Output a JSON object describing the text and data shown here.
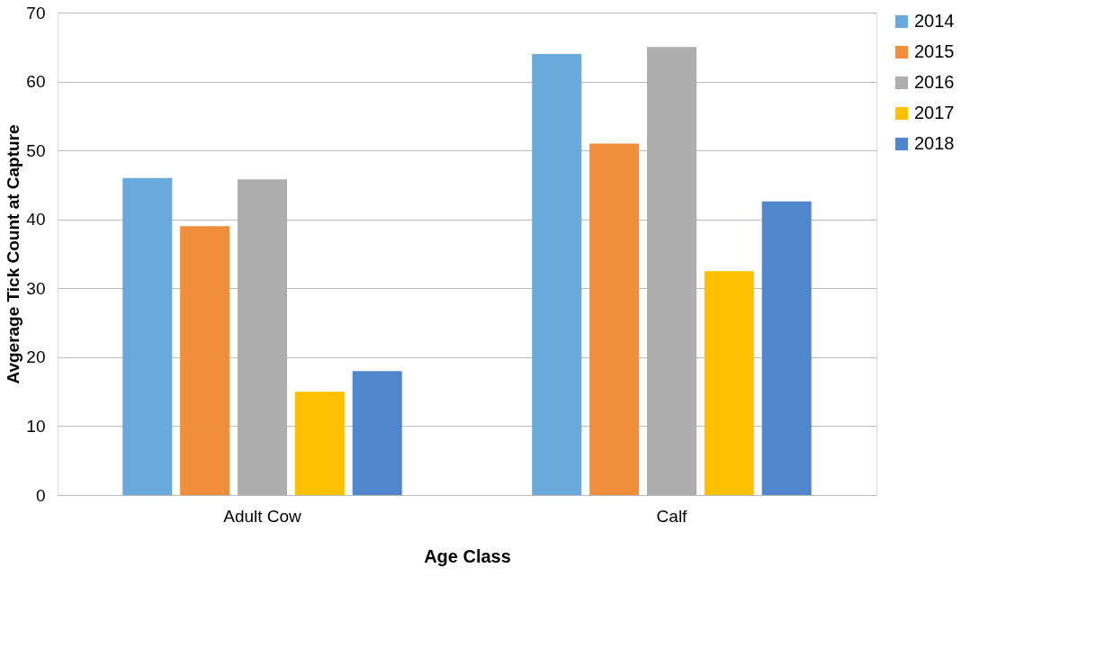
{
  "chart_data": {
    "type": "bar",
    "xlabel": "Age Class",
    "ylabel": "Avgerage Tick Count at Capture",
    "categories": [
      "Adult Cow",
      "Calf"
    ],
    "series": [
      {
        "name": "2014",
        "color": "#6aa9dc",
        "values": [
          46,
          64
        ]
      },
      {
        "name": "2015",
        "color": "#f08e3c",
        "values": [
          39,
          51
        ]
      },
      {
        "name": "2016",
        "color": "#aeaeae",
        "values": [
          45.8,
          65
        ]
      },
      {
        "name": "2017",
        "color": "#ffc000",
        "values": [
          15,
          32.5
        ]
      },
      {
        "name": "2018",
        "color": "#4f86cc",
        "values": [
          18,
          42.6
        ]
      }
    ],
    "ylim": [
      0,
      70
    ],
    "yticks": [
      0,
      10,
      20,
      30,
      40,
      50,
      60,
      70
    ],
    "grid": "y",
    "legend": "right"
  }
}
